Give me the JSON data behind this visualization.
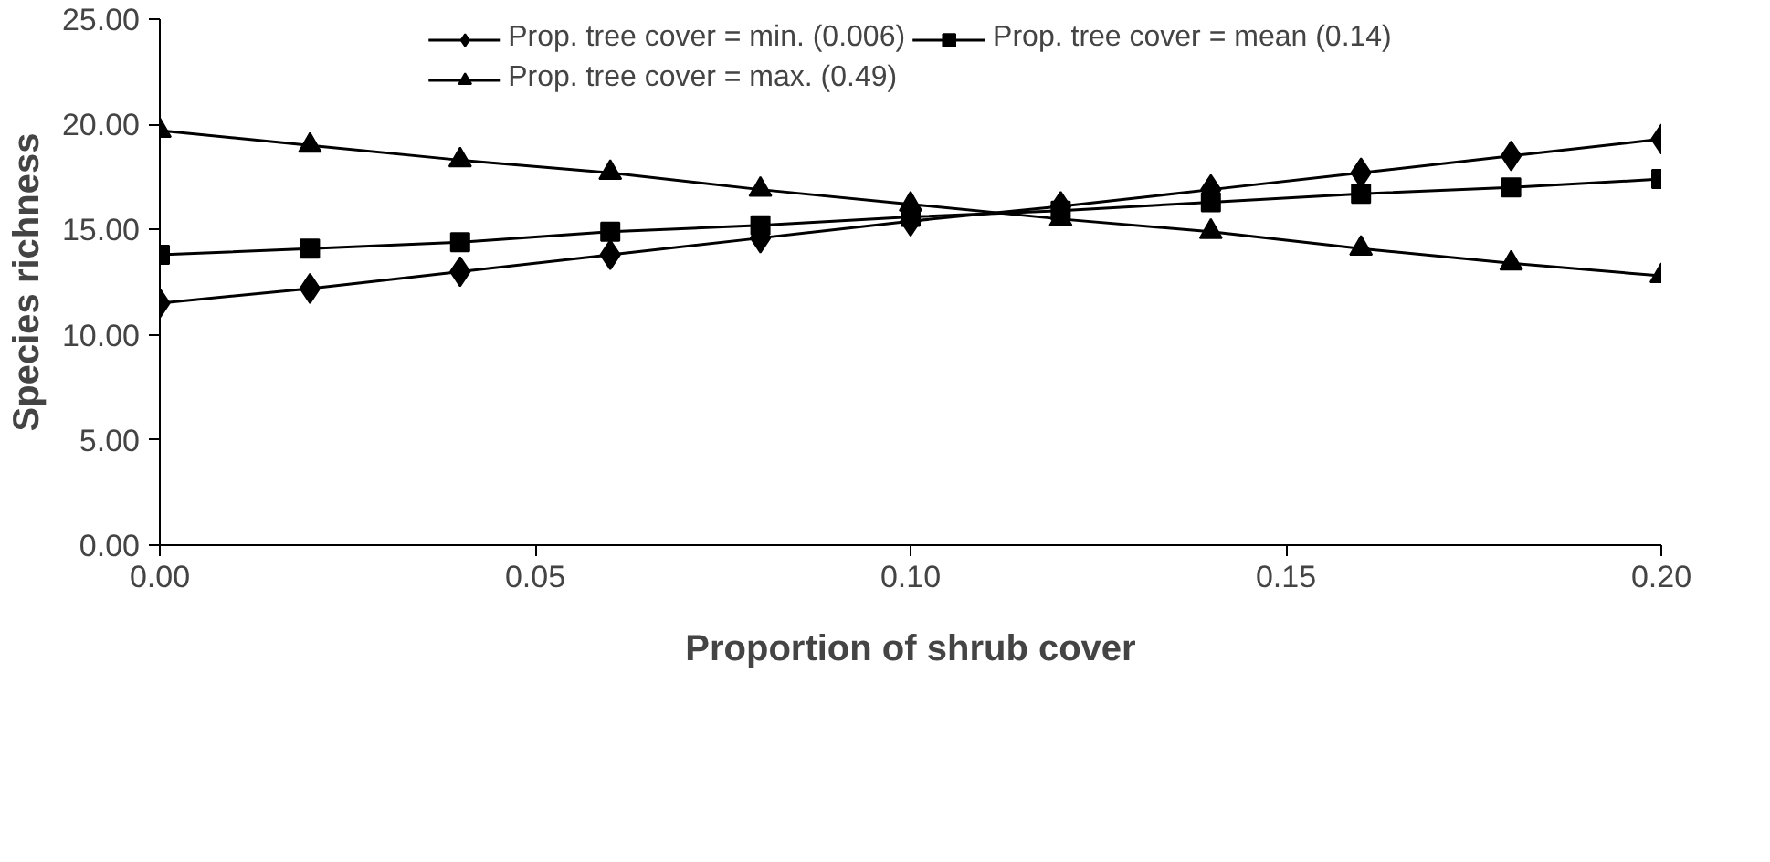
{
  "chart_data": {
    "type": "line",
    "xlabel": "Proportion of shrub cover",
    "ylabel": "Species richness",
    "x": [
      0.0,
      0.02,
      0.04,
      0.06,
      0.08,
      0.1,
      0.12,
      0.14,
      0.16,
      0.18,
      0.2
    ],
    "series": [
      {
        "name": "Prop. tree cover = min. (0.006)",
        "color": "#000000",
        "marker": "diamond",
        "values": [
          11.5,
          12.2,
          13.0,
          13.8,
          14.6,
          15.4,
          16.1,
          16.9,
          17.7,
          18.5,
          19.3
        ]
      },
      {
        "name": "Prop. tree cover = mean (0.14)",
        "color": "#000000",
        "marker": "square",
        "values": [
          13.8,
          14.1,
          14.4,
          14.9,
          15.2,
          15.6,
          15.9,
          16.3,
          16.7,
          17.0,
          17.4
        ]
      },
      {
        "name": "Prop. tree cover = max. (0.49)",
        "color": "#000000",
        "marker": "triangle",
        "values": [
          19.7,
          19.0,
          18.3,
          17.7,
          16.9,
          16.2,
          15.5,
          14.9,
          14.1,
          13.4,
          12.8
        ]
      }
    ],
    "xlim": [
      0,
      0.2
    ],
    "ylim": [
      0,
      25
    ],
    "xticks": [
      {
        "value": 0,
        "label": "0.00"
      },
      {
        "value": 0.05,
        "label": "0.05"
      },
      {
        "value": 0.1,
        "label": "0.10"
      },
      {
        "value": 0.15,
        "label": "0.15"
      },
      {
        "value": 0.2,
        "label": "0.20"
      }
    ],
    "yticks": [
      {
        "value": 0,
        "label": "0.00"
      },
      {
        "value": 5,
        "label": "5.00"
      },
      {
        "value": 10,
        "label": "10.00"
      },
      {
        "value": 15,
        "label": "15.00"
      },
      {
        "value": 20,
        "label": "20.00"
      },
      {
        "value": 25,
        "label": "25.00"
      }
    ],
    "grid": false,
    "legend": "top",
    "line_style": "solid"
  }
}
